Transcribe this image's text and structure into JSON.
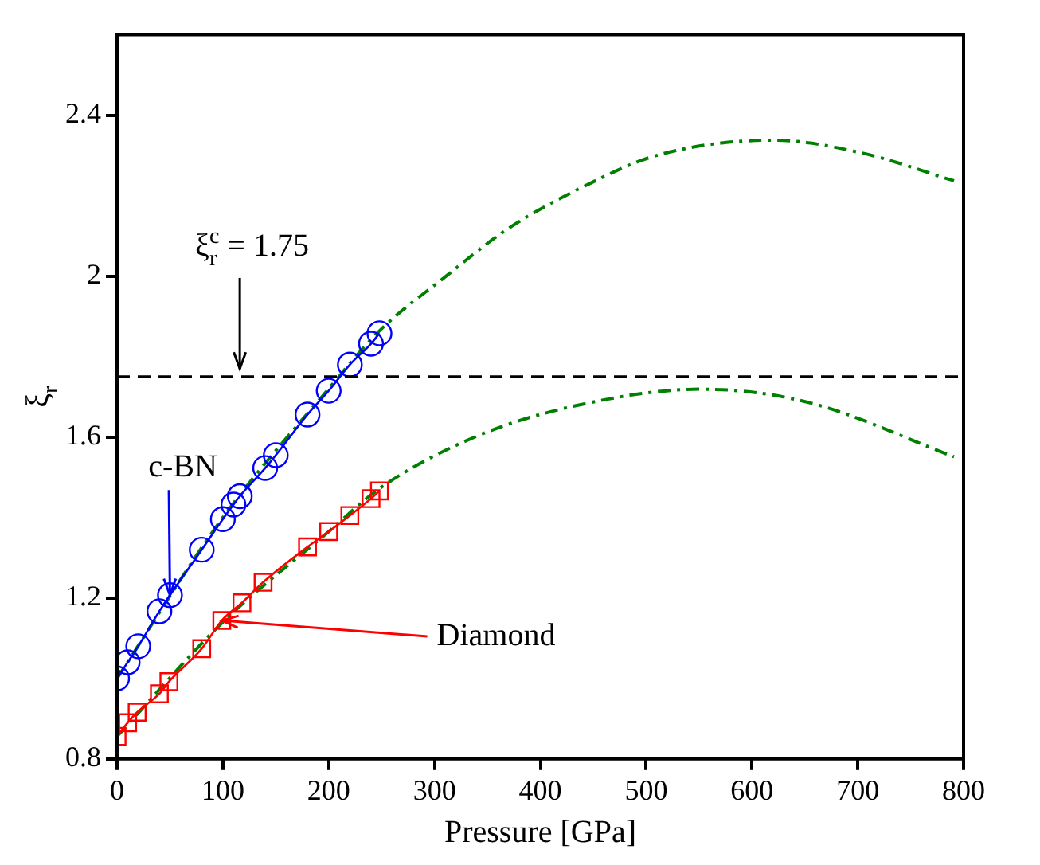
{
  "chart_data": {
    "type": "line",
    "xlabel": "Pressure [GPa]",
    "ylabel": "ξ$_{r}$",
    "xlim": [
      0,
      800
    ],
    "xticks": [
      0,
      100,
      200,
      300,
      400,
      500,
      600,
      700,
      800
    ],
    "ylim": [
      0.8,
      2.6
    ],
    "yticks": [
      0.8,
      1.2,
      1.6,
      2,
      2.4
    ],
    "grid": false,
    "legend": false,
    "series": [
      {
        "color": "#0000ff",
        "marker": "circle",
        "line_style": "solid",
        "x": [
          0,
          10,
          20,
          40,
          50,
          80,
          100,
          110,
          116,
          140,
          150,
          180,
          200,
          220,
          240,
          248
        ],
        "values": [
          1.0,
          1.04,
          1.08,
          1.167,
          1.207,
          1.32,
          1.396,
          1.432,
          1.453,
          1.523,
          1.555,
          1.656,
          1.715,
          1.78,
          1.832,
          1.858
        ]
      },
      {
        "color": "#ff0000",
        "marker": "square",
        "line_style": "solid",
        "x": [
          0,
          10,
          19,
          40,
          49,
          80,
          99,
          118,
          138,
          180,
          200,
          220,
          240,
          248
        ],
        "values": [
          0.856,
          0.89,
          0.916,
          0.962,
          0.992,
          1.074,
          1.144,
          1.188,
          1.239,
          1.327,
          1.365,
          1.405,
          1.447,
          1.466
        ]
      },
      {
        "color": "#008000",
        "marker": "none",
        "line_style": "dashed",
        "x": [
          0,
          100,
          200,
          248,
          311,
          369,
          442,
          510,
          620,
          704,
          791
        ],
        "values": [
          1.0,
          1.4,
          1.72,
          1.864,
          2.0,
          2.117,
          2.224,
          2.3,
          2.338,
          2.306,
          2.237
        ]
      },
      {
        "color": "#008000",
        "marker": "none",
        "line_style": "dashed",
        "x": [
          0,
          100,
          200,
          248,
          338,
          432,
          552,
          652,
          791
        ],
        "values": [
          0.856,
          1.14,
          1.365,
          1.472,
          1.6,
          1.677,
          1.719,
          1.687,
          1.551
        ]
      }
    ],
    "ref_lines": [
      {
        "axis": "y",
        "value": 1.75,
        "label": "ξ$_{r}$$^{c}$ = 1.75",
        "color": "#000000",
        "line_style": "dashed"
      }
    ],
    "annotations": [
      {
        "text": "c-BN",
        "x": 50,
        "y": 1.207
      },
      {
        "text": "Diamond",
        "x": 99,
        "y": 1.144
      }
    ]
  }
}
